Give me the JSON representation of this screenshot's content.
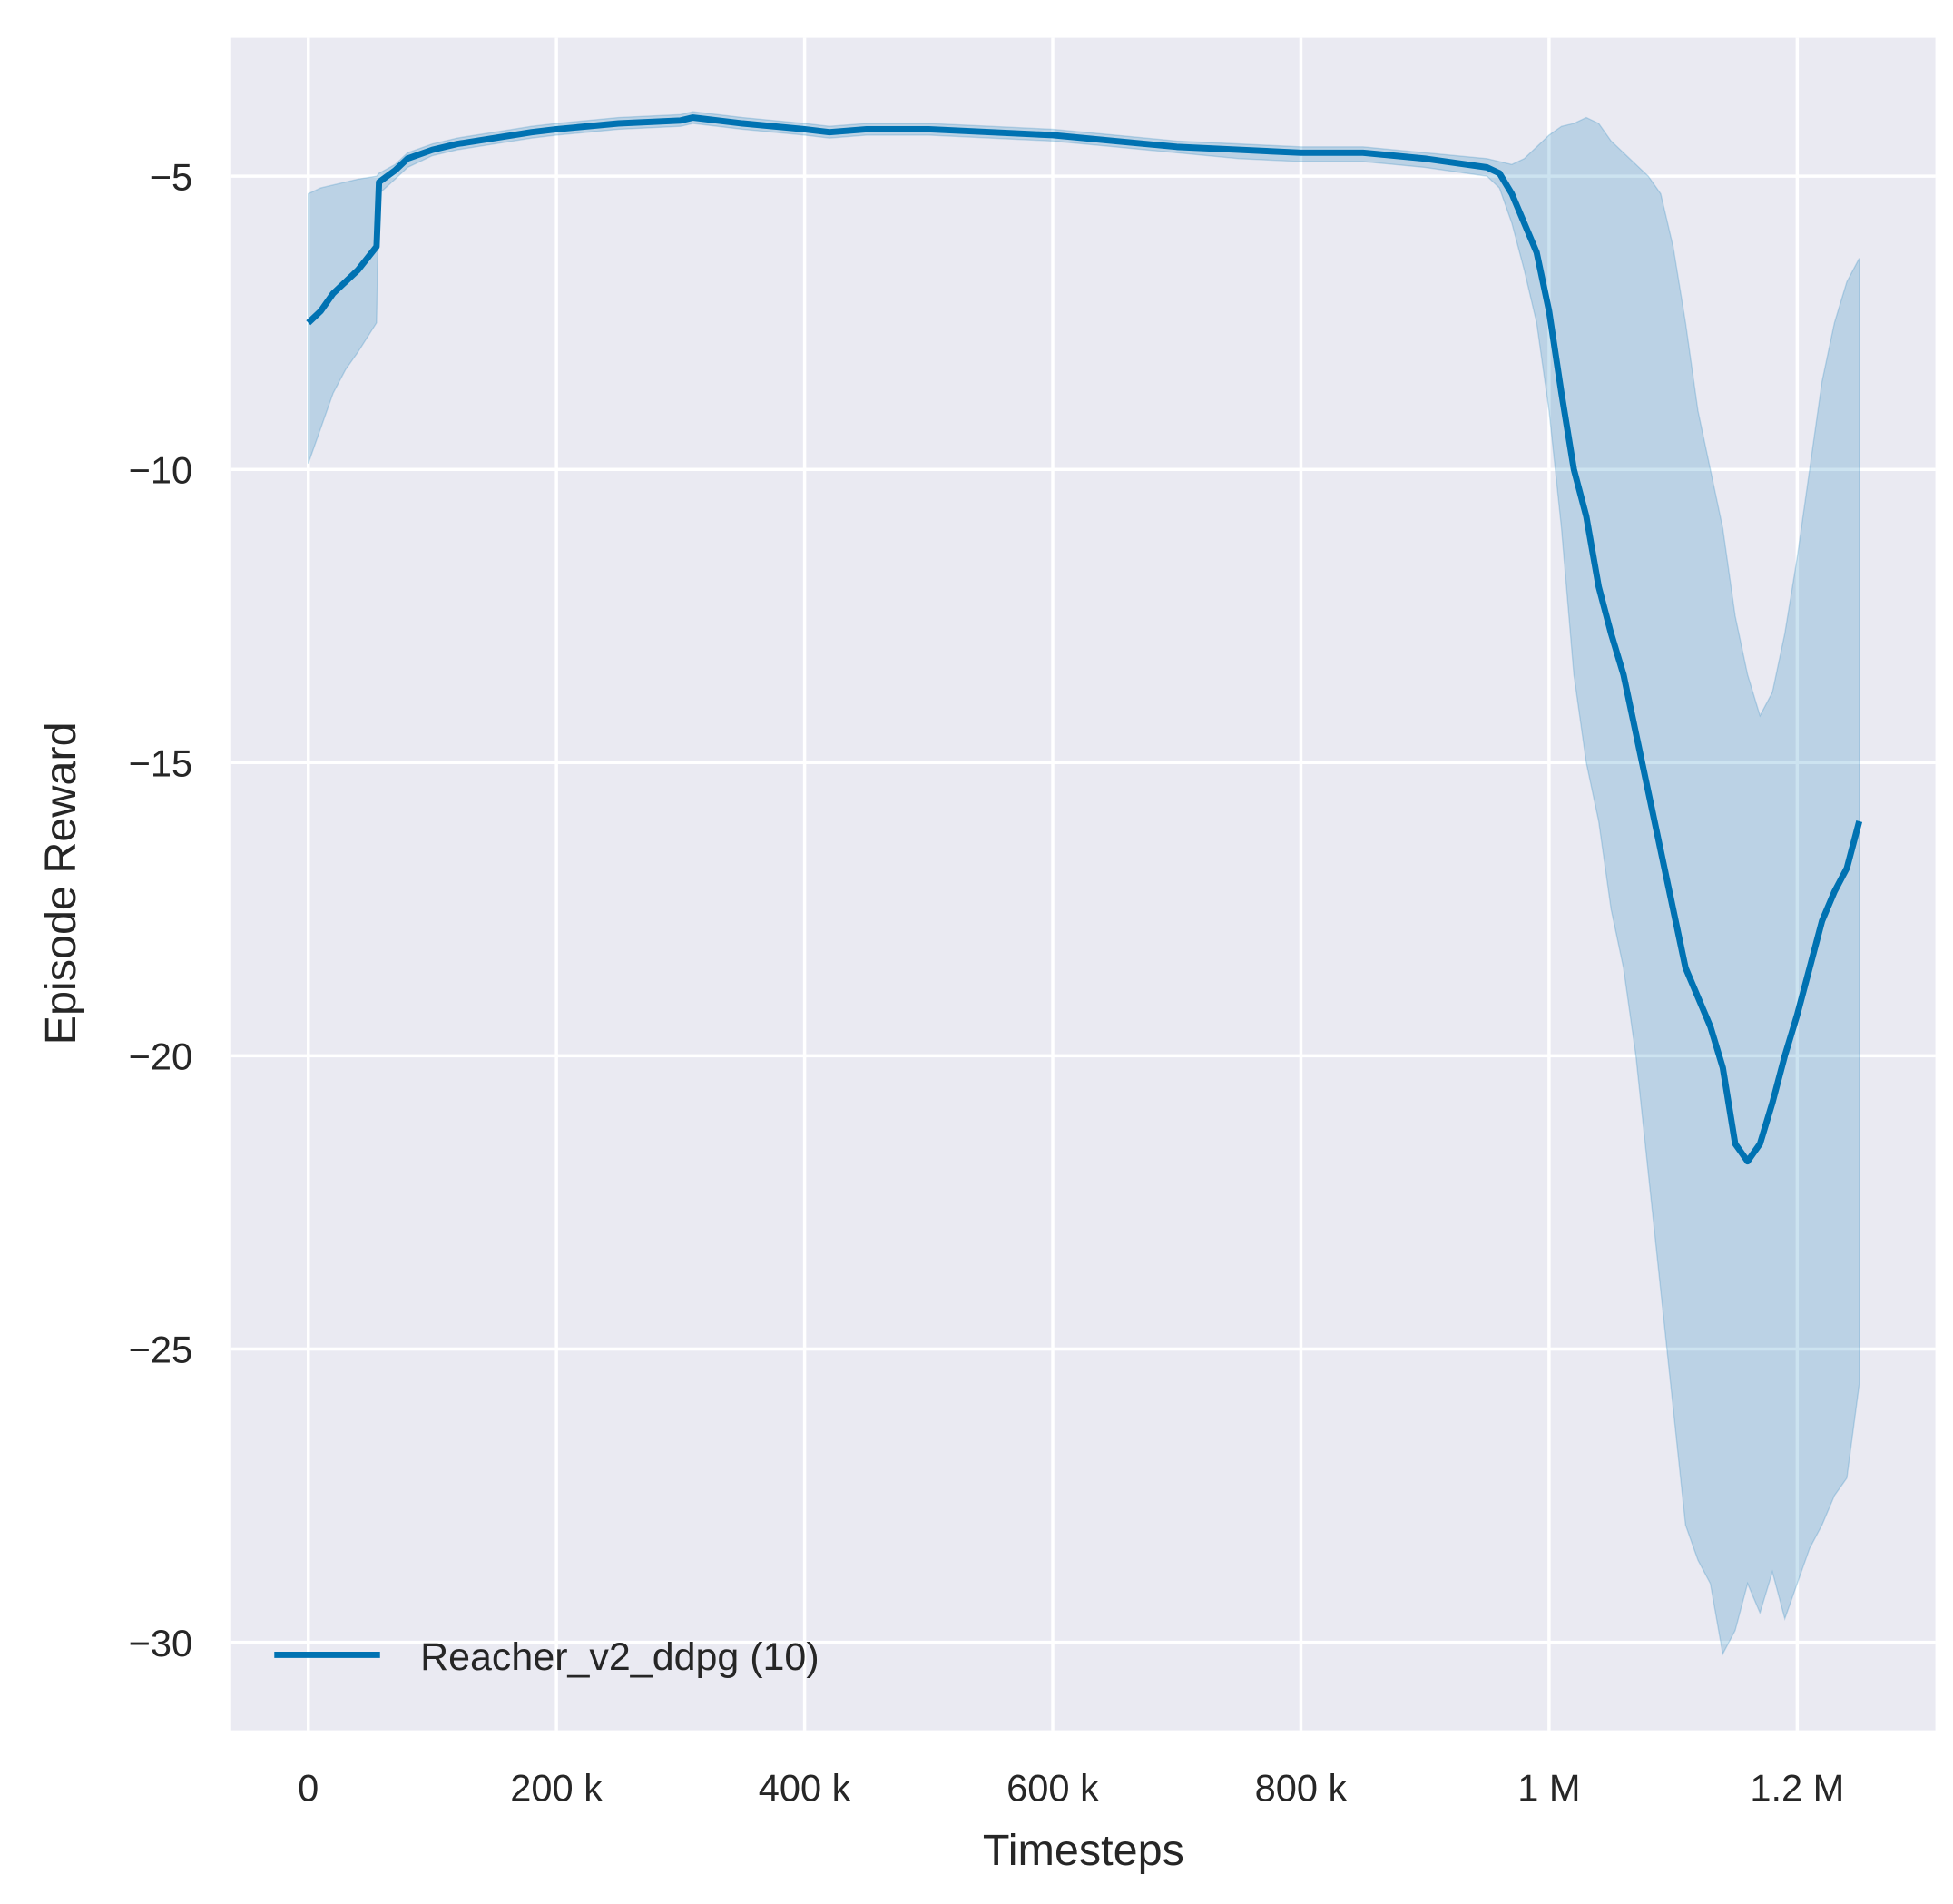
{
  "chart_data": {
    "type": "line",
    "title": "",
    "xlabel": "Timesteps",
    "ylabel": "Episode Reward",
    "xlim": [
      -62000,
      1312000
    ],
    "ylim": [
      -31.5,
      -2.7
    ],
    "grid": true,
    "legend_placement": "bottom-left",
    "background_color": "#eaeaf2",
    "series_color": "#0072b2",
    "band_color": "#0072b2",
    "x_ticks": [
      0,
      200000,
      400000,
      600000,
      800000,
      1000000,
      1200000
    ],
    "x_tick_labels": [
      "0",
      "200 k",
      "400 k",
      "600 k",
      "800 k",
      "1 M",
      "1.2 M"
    ],
    "y_ticks": [
      -5,
      -10,
      -15,
      -20,
      -25,
      -30
    ],
    "y_tick_labels": [
      "−5",
      "−10",
      "−15",
      "−20",
      "−25",
      "−30"
    ],
    "series": [
      {
        "name": "Reacher_v2_ddpg (10)",
        "x": [
          0,
          10000,
          20000,
          30000,
          40000,
          55000,
          57000,
          70000,
          80000,
          100000,
          120000,
          150000,
          180000,
          200000,
          250000,
          300000,
          310000,
          350000,
          400000,
          420000,
          450000,
          500000,
          550000,
          600000,
          650000,
          700000,
          750000,
          800000,
          850000,
          900000,
          950000,
          960000,
          970000,
          980000,
          990000,
          1000000,
          1010000,
          1020000,
          1030000,
          1040000,
          1050000,
          1060000,
          1070000,
          1080000,
          1090000,
          1100000,
          1110000,
          1120000,
          1130000,
          1140000,
          1150000,
          1160000,
          1170000,
          1180000,
          1190000,
          1200000,
          1210000,
          1220000,
          1230000,
          1240000,
          1250000
        ],
        "mean": [
          -7.5,
          -7.3,
          -7.0,
          -6.8,
          -6.6,
          -6.2,
          -5.1,
          -4.9,
          -4.7,
          -4.55,
          -4.45,
          -4.35,
          -4.25,
          -4.2,
          -4.1,
          -4.05,
          -4.0,
          -4.1,
          -4.2,
          -4.25,
          -4.2,
          -4.2,
          -4.25,
          -4.3,
          -4.4,
          -4.5,
          -4.55,
          -4.6,
          -4.6,
          -4.7,
          -4.85,
          -4.95,
          -5.3,
          -5.8,
          -6.3,
          -7.3,
          -8.7,
          -10.0,
          -10.8,
          -12.0,
          -12.8,
          -13.5,
          -14.5,
          -15.5,
          -16.5,
          -17.5,
          -18.5,
          -19.0,
          -19.5,
          -20.2,
          -21.5,
          -21.8,
          -21.5,
          -20.8,
          -20.0,
          -19.3,
          -18.5,
          -17.7,
          -17.2,
          -16.8,
          -16.0
        ],
        "lower": [
          -9.9,
          -9.3,
          -8.7,
          -8.3,
          -8.0,
          -7.5,
          -5.3,
          -5.05,
          -4.85,
          -4.65,
          -4.55,
          -4.45,
          -4.35,
          -4.3,
          -4.2,
          -4.15,
          -4.1,
          -4.2,
          -4.3,
          -4.35,
          -4.3,
          -4.3,
          -4.35,
          -4.4,
          -4.5,
          -4.6,
          -4.7,
          -4.75,
          -4.75,
          -4.85,
          -5.0,
          -5.2,
          -5.8,
          -6.6,
          -7.5,
          -9.0,
          -11.0,
          -13.5,
          -15.0,
          -16.0,
          -17.5,
          -18.5,
          -20.0,
          -22.0,
          -24.0,
          -26.0,
          -28.0,
          -28.6,
          -29.0,
          -30.2,
          -29.8,
          -29.0,
          -29.5,
          -28.8,
          -29.6,
          -29.0,
          -28.4,
          -28.0,
          -27.5,
          -27.2,
          -25.6
        ],
        "upper": [
          -5.3,
          -5.2,
          -5.15,
          -5.1,
          -5.05,
          -5.0,
          -4.95,
          -4.8,
          -4.6,
          -4.45,
          -4.35,
          -4.25,
          -4.15,
          -4.1,
          -4.0,
          -3.95,
          -3.9,
          -4.0,
          -4.1,
          -4.15,
          -4.1,
          -4.1,
          -4.15,
          -4.2,
          -4.3,
          -4.4,
          -4.45,
          -4.5,
          -4.5,
          -4.6,
          -4.7,
          -4.75,
          -4.8,
          -4.7,
          -4.5,
          -4.3,
          -4.15,
          -4.1,
          -4.0,
          -4.1,
          -4.4,
          -4.6,
          -4.8,
          -5.0,
          -5.3,
          -6.2,
          -7.5,
          -9.0,
          -10.0,
          -11.0,
          -12.5,
          -13.5,
          -14.2,
          -13.8,
          -12.8,
          -11.5,
          -10.0,
          -8.5,
          -7.5,
          -6.8,
          -6.4
        ]
      }
    ]
  }
}
